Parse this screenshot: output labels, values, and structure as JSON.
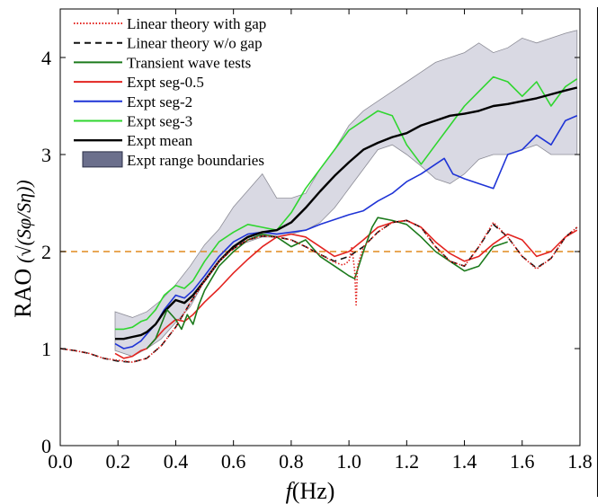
{
  "chart_data": {
    "type": "line",
    "xlabel_var": "f",
    "xlabel_unit": "(Hz)",
    "ylabel_main": "RAO",
    "ylabel_formula": "(√(Sφ/Sη))",
    "xlim": [
      0,
      1.8
    ],
    "ylim": [
      0,
      4.5
    ],
    "x_ticks": [
      0.0,
      0.2,
      0.4,
      0.6,
      0.8,
      1.0,
      1.2,
      1.4,
      1.6,
      1.8
    ],
    "x_tick_labels": [
      "0.0",
      "0.2",
      "0.4",
      "0.6",
      "0.8",
      "1.0",
      "1.2",
      "1.4",
      "1.6",
      "1.8"
    ],
    "y_ticks": [
      0,
      1,
      2,
      3,
      4
    ],
    "y_tick_labels": [
      "0",
      "1",
      "2",
      "3",
      "4"
    ],
    "grid": false,
    "legend_position": "top-left",
    "reference_line": {
      "y": 2,
      "color": "#E08A1E",
      "style": "dashed"
    },
    "range_band": {
      "name": "Expt range boundaries",
      "fill": "#D9D9E3",
      "edge": "#8C8C96",
      "swatch": "#6B6F8C",
      "x": [
        0.19,
        0.25,
        0.3,
        0.35,
        0.4,
        0.45,
        0.5,
        0.55,
        0.6,
        0.65,
        0.7,
        0.75,
        0.8,
        0.85,
        0.9,
        0.95,
        1.0,
        1.05,
        1.1,
        1.15,
        1.2,
        1.25,
        1.3,
        1.35,
        1.4,
        1.45,
        1.5,
        1.55,
        1.6,
        1.65,
        1.7,
        1.75,
        1.79
      ],
      "upper": [
        1.38,
        1.32,
        1.38,
        1.5,
        1.66,
        1.85,
        2.07,
        2.23,
        2.46,
        2.63,
        2.8,
        2.55,
        2.55,
        2.6,
        2.85,
        3.05,
        3.3,
        3.45,
        3.55,
        3.65,
        3.75,
        3.85,
        3.95,
        4.0,
        4.05,
        4.15,
        4.05,
        4.1,
        4.2,
        4.15,
        4.2,
        4.25,
        4.28
      ],
      "lower": [
        0.98,
        0.92,
        1.0,
        1.1,
        1.27,
        1.43,
        1.7,
        1.9,
        2.05,
        2.1,
        2.15,
        2.15,
        2.18,
        2.22,
        2.3,
        2.45,
        2.65,
        2.85,
        3.05,
        3.1,
        3.0,
        2.88,
        2.75,
        2.7,
        2.8,
        2.95,
        3.0,
        3.0,
        3.05,
        3.1,
        3.0,
        3.0,
        3.0
      ]
    },
    "series": [
      {
        "name": "Linear theory with gap",
        "color": "#E32420",
        "style": "dotted",
        "x": [
          0.0,
          0.05,
          0.1,
          0.15,
          0.2,
          0.25,
          0.3,
          0.35,
          0.4,
          0.45,
          0.5,
          0.55,
          0.6,
          0.65,
          0.7,
          0.75,
          0.8,
          0.85,
          0.9,
          0.95,
          0.98,
          1.0,
          1.01,
          1.02,
          1.025,
          1.03,
          1.05,
          1.1,
          1.15,
          1.2,
          1.25,
          1.3,
          1.35,
          1.4,
          1.45,
          1.5,
          1.55,
          1.6,
          1.65,
          1.7,
          1.75,
          1.79
        ],
        "y": [
          1.0,
          0.98,
          0.95,
          0.9,
          0.88,
          0.86,
          0.9,
          1.03,
          1.22,
          1.47,
          1.7,
          1.9,
          2.03,
          2.12,
          2.16,
          2.15,
          2.12,
          2.05,
          1.97,
          1.89,
          1.86,
          1.9,
          2.05,
          1.8,
          1.45,
          1.85,
          2.05,
          2.2,
          2.3,
          2.32,
          2.25,
          2.05,
          1.9,
          1.85,
          2.05,
          2.3,
          2.15,
          1.95,
          1.82,
          1.93,
          2.15,
          2.25
        ]
      },
      {
        "name": "Linear theory w/o gap",
        "color": "#111111",
        "style": "dashed",
        "x": [
          0.0,
          0.05,
          0.1,
          0.15,
          0.2,
          0.25,
          0.3,
          0.35,
          0.4,
          0.45,
          0.5,
          0.55,
          0.6,
          0.65,
          0.7,
          0.75,
          0.8,
          0.85,
          0.9,
          0.95,
          1.0,
          1.05,
          1.1,
          1.15,
          1.2,
          1.25,
          1.3,
          1.35,
          1.4,
          1.45,
          1.5,
          1.55,
          1.6,
          1.65,
          1.7,
          1.75,
          1.79
        ],
        "y": [
          1.0,
          0.98,
          0.95,
          0.9,
          0.87,
          0.86,
          0.9,
          1.03,
          1.22,
          1.47,
          1.7,
          1.9,
          2.03,
          2.12,
          2.16,
          2.15,
          2.12,
          2.05,
          1.97,
          1.9,
          1.95,
          2.05,
          2.2,
          2.3,
          2.32,
          2.25,
          2.05,
          1.9,
          1.85,
          2.05,
          2.28,
          2.15,
          1.95,
          1.83,
          1.93,
          2.15,
          2.25
        ]
      },
      {
        "name": "Transient wave tests",
        "color": "#1C7A1C",
        "style": "solid",
        "x": [
          0.3,
          0.33,
          0.35,
          0.37,
          0.4,
          0.42,
          0.44,
          0.46,
          0.48,
          0.5,
          0.55,
          0.6,
          0.65,
          0.7,
          0.75,
          0.8,
          0.85,
          0.9,
          0.95,
          1.0,
          1.02,
          1.05,
          1.08,
          1.1,
          1.15,
          1.2,
          1.25,
          1.3,
          1.35,
          1.4,
          1.45,
          1.5,
          1.55
        ],
        "y": [
          1.0,
          1.1,
          1.25,
          1.4,
          1.3,
          1.2,
          1.35,
          1.25,
          1.45,
          1.6,
          1.85,
          2.0,
          2.12,
          2.18,
          2.15,
          2.05,
          2.12,
          1.95,
          1.85,
          1.75,
          1.72,
          2.0,
          2.25,
          2.35,
          2.32,
          2.28,
          2.15,
          2.0,
          1.9,
          1.8,
          1.85,
          2.05,
          2.1
        ]
      },
      {
        "name": "Expt seg-0.5",
        "color": "#E32420",
        "style": "solid",
        "x": [
          0.19,
          0.22,
          0.25,
          0.28,
          0.3,
          0.33,
          0.36,
          0.4,
          0.43,
          0.46,
          0.5,
          0.55,
          0.6,
          0.65,
          0.7,
          0.75,
          0.8,
          0.85,
          0.9,
          0.95,
          1.0,
          1.05,
          1.1,
          1.15,
          1.2,
          1.25,
          1.3,
          1.35,
          1.4,
          1.45,
          1.5,
          1.55,
          1.6,
          1.65,
          1.7,
          1.75,
          1.79
        ],
        "y": [
          0.95,
          0.9,
          0.92,
          0.98,
          1.0,
          1.1,
          1.2,
          1.3,
          1.28,
          1.35,
          1.48,
          1.62,
          1.78,
          1.92,
          2.05,
          2.15,
          2.18,
          2.15,
          2.05,
          1.95,
          2.0,
          2.12,
          2.25,
          2.3,
          2.32,
          2.25,
          2.1,
          1.98,
          1.9,
          1.95,
          2.08,
          2.18,
          2.12,
          1.95,
          2.0,
          2.15,
          2.22
        ]
      },
      {
        "name": "Expt seg-2",
        "color": "#1F34D6",
        "style": "solid",
        "x": [
          0.19,
          0.22,
          0.25,
          0.28,
          0.3,
          0.33,
          0.36,
          0.4,
          0.43,
          0.46,
          0.5,
          0.55,
          0.6,
          0.65,
          0.7,
          0.75,
          0.8,
          0.85,
          0.9,
          0.95,
          1.0,
          1.05,
          1.1,
          1.15,
          1.2,
          1.25,
          1.3,
          1.33,
          1.36,
          1.4,
          1.45,
          1.5,
          1.55,
          1.6,
          1.65,
          1.7,
          1.75,
          1.79
        ],
        "y": [
          1.05,
          1.0,
          1.02,
          1.08,
          1.15,
          1.25,
          1.4,
          1.55,
          1.52,
          1.6,
          1.75,
          1.95,
          2.1,
          2.18,
          2.2,
          2.18,
          2.2,
          2.22,
          2.28,
          2.33,
          2.38,
          2.42,
          2.52,
          2.6,
          2.72,
          2.8,
          2.9,
          2.96,
          2.8,
          2.75,
          2.7,
          2.65,
          3.0,
          3.05,
          3.2,
          3.1,
          3.35,
          3.4
        ]
      },
      {
        "name": "Expt seg-3",
        "color": "#2FD62F",
        "style": "solid",
        "x": [
          0.19,
          0.22,
          0.25,
          0.28,
          0.3,
          0.33,
          0.36,
          0.4,
          0.43,
          0.46,
          0.5,
          0.55,
          0.6,
          0.65,
          0.7,
          0.75,
          0.8,
          0.85,
          0.9,
          0.95,
          1.0,
          1.05,
          1.1,
          1.15,
          1.2,
          1.25,
          1.3,
          1.35,
          1.4,
          1.45,
          1.5,
          1.55,
          1.6,
          1.65,
          1.7,
          1.75,
          1.79
        ],
        "y": [
          1.2,
          1.2,
          1.22,
          1.28,
          1.3,
          1.4,
          1.55,
          1.65,
          1.62,
          1.7,
          1.9,
          2.1,
          2.2,
          2.28,
          2.25,
          2.22,
          2.4,
          2.65,
          2.85,
          3.05,
          3.25,
          3.35,
          3.45,
          3.4,
          3.1,
          2.9,
          3.1,
          3.3,
          3.5,
          3.65,
          3.8,
          3.75,
          3.6,
          3.75,
          3.5,
          3.7,
          3.78
        ]
      },
      {
        "name": "Expt mean",
        "color": "#000000",
        "style": "solid",
        "x": [
          0.19,
          0.22,
          0.25,
          0.28,
          0.3,
          0.33,
          0.36,
          0.4,
          0.43,
          0.46,
          0.5,
          0.55,
          0.6,
          0.65,
          0.7,
          0.75,
          0.8,
          0.85,
          0.9,
          0.95,
          1.0,
          1.05,
          1.1,
          1.15,
          1.2,
          1.25,
          1.3,
          1.35,
          1.4,
          1.45,
          1.5,
          1.55,
          1.6,
          1.65,
          1.7,
          1.75,
          1.79
        ],
        "y": [
          1.1,
          1.1,
          1.12,
          1.14,
          1.17,
          1.25,
          1.38,
          1.5,
          1.47,
          1.55,
          1.7,
          1.9,
          2.05,
          2.15,
          2.2,
          2.22,
          2.3,
          2.45,
          2.62,
          2.78,
          2.92,
          3.05,
          3.12,
          3.18,
          3.22,
          3.3,
          3.35,
          3.4,
          3.42,
          3.45,
          3.5,
          3.52,
          3.55,
          3.58,
          3.62,
          3.66,
          3.69
        ]
      }
    ]
  }
}
